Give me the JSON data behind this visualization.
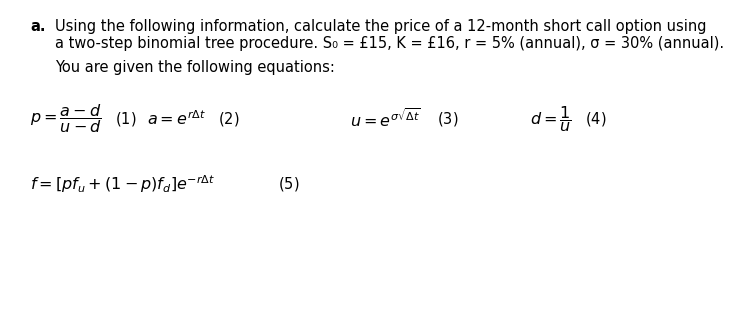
{
  "bg_color": "#ffffff",
  "text_color": "#000000",
  "label_a": "a.",
  "line1": "Using the following information, calculate the price of a 12-month short call option using",
  "line2": "a two-step binomial tree procedure. S₀ = £15, K = £16, r = 5% (annual), σ = 30% (annual).",
  "line3": "You are given the following equations:",
  "fontsize_body": 10.5,
  "fontsize_eq": 11.5
}
